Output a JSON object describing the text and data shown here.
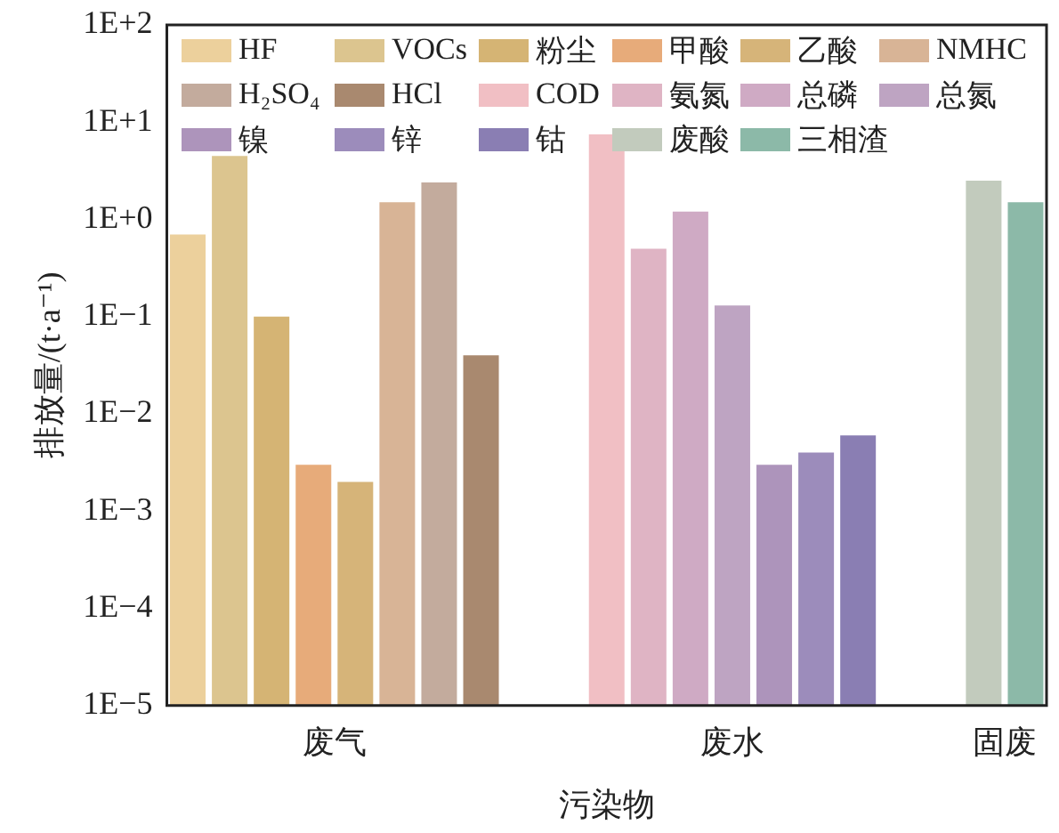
{
  "chart_data": {
    "type": "bar",
    "xlabel": "污染物",
    "ylabel": "排放量/(t·a⁻¹)",
    "categories": [
      "废气",
      "废水",
      "固废"
    ],
    "log": "y",
    "ylim": [
      1e-05,
      100
    ],
    "yticks": [
      {
        "value": 1e-05,
        "label": "1E−5"
      },
      {
        "value": 0.0001,
        "label": "1E−4"
      },
      {
        "value": 0.001,
        "label": "1E−3"
      },
      {
        "value": 0.01,
        "label": "1E−2"
      },
      {
        "value": 0.1,
        "label": "1E−1"
      },
      {
        "value": 1,
        "label": "1E+0"
      },
      {
        "value": 10,
        "label": "1E+1"
      },
      {
        "value": 100,
        "label": "1E+2"
      }
    ],
    "legend": "top",
    "series": [
      {
        "name": "HF",
        "color": "#ecd09c",
        "values": [
          0.7,
          null,
          null
        ]
      },
      {
        "name": "VOCs",
        "color": "#dcc58f",
        "values": [
          4.5,
          null,
          null
        ]
      },
      {
        "name": "粉尘",
        "color": "#d5b474",
        "values": [
          0.1,
          null,
          null
        ]
      },
      {
        "name": "甲酸",
        "color": "#e7ab7a",
        "values": [
          0.003,
          null,
          null
        ]
      },
      {
        "name": "乙酸",
        "color": "#d6b479",
        "values": [
          0.002,
          null,
          null
        ]
      },
      {
        "name": "NMHC",
        "color": "#d8b496",
        "values": [
          1.5,
          null,
          null
        ]
      },
      {
        "name": "H₂SO₄",
        "color": "#c3ab9d",
        "values": [
          2.4,
          null,
          null
        ]
      },
      {
        "name": "HCl",
        "color": "#a9896f",
        "values": [
          0.04,
          null,
          null
        ]
      },
      {
        "name": "COD",
        "color": "#f1bfc4",
        "values": [
          null,
          7.5,
          null
        ]
      },
      {
        "name": "氨氮",
        "color": "#dfb4c4",
        "values": [
          null,
          0.5,
          null
        ]
      },
      {
        "name": "总磷",
        "color": "#cfaac4",
        "values": [
          null,
          1.2,
          null
        ]
      },
      {
        "name": "总氮",
        "color": "#bea4c2",
        "values": [
          null,
          0.13,
          null
        ]
      },
      {
        "name": "镍",
        "color": "#ad94bb",
        "values": [
          null,
          0.003,
          null
        ]
      },
      {
        "name": "锌",
        "color": "#9c8cbb",
        "values": [
          null,
          0.004,
          null
        ]
      },
      {
        "name": "钴",
        "color": "#8a7eb3",
        "values": [
          null,
          0.006,
          null
        ]
      },
      {
        "name": "废酸",
        "color": "#c2cbbd",
        "values": [
          null,
          null,
          2.5
        ]
      },
      {
        "name": "三相渣",
        "color": "#8cb9a8",
        "values": [
          null,
          null,
          1.5
        ]
      }
    ]
  }
}
